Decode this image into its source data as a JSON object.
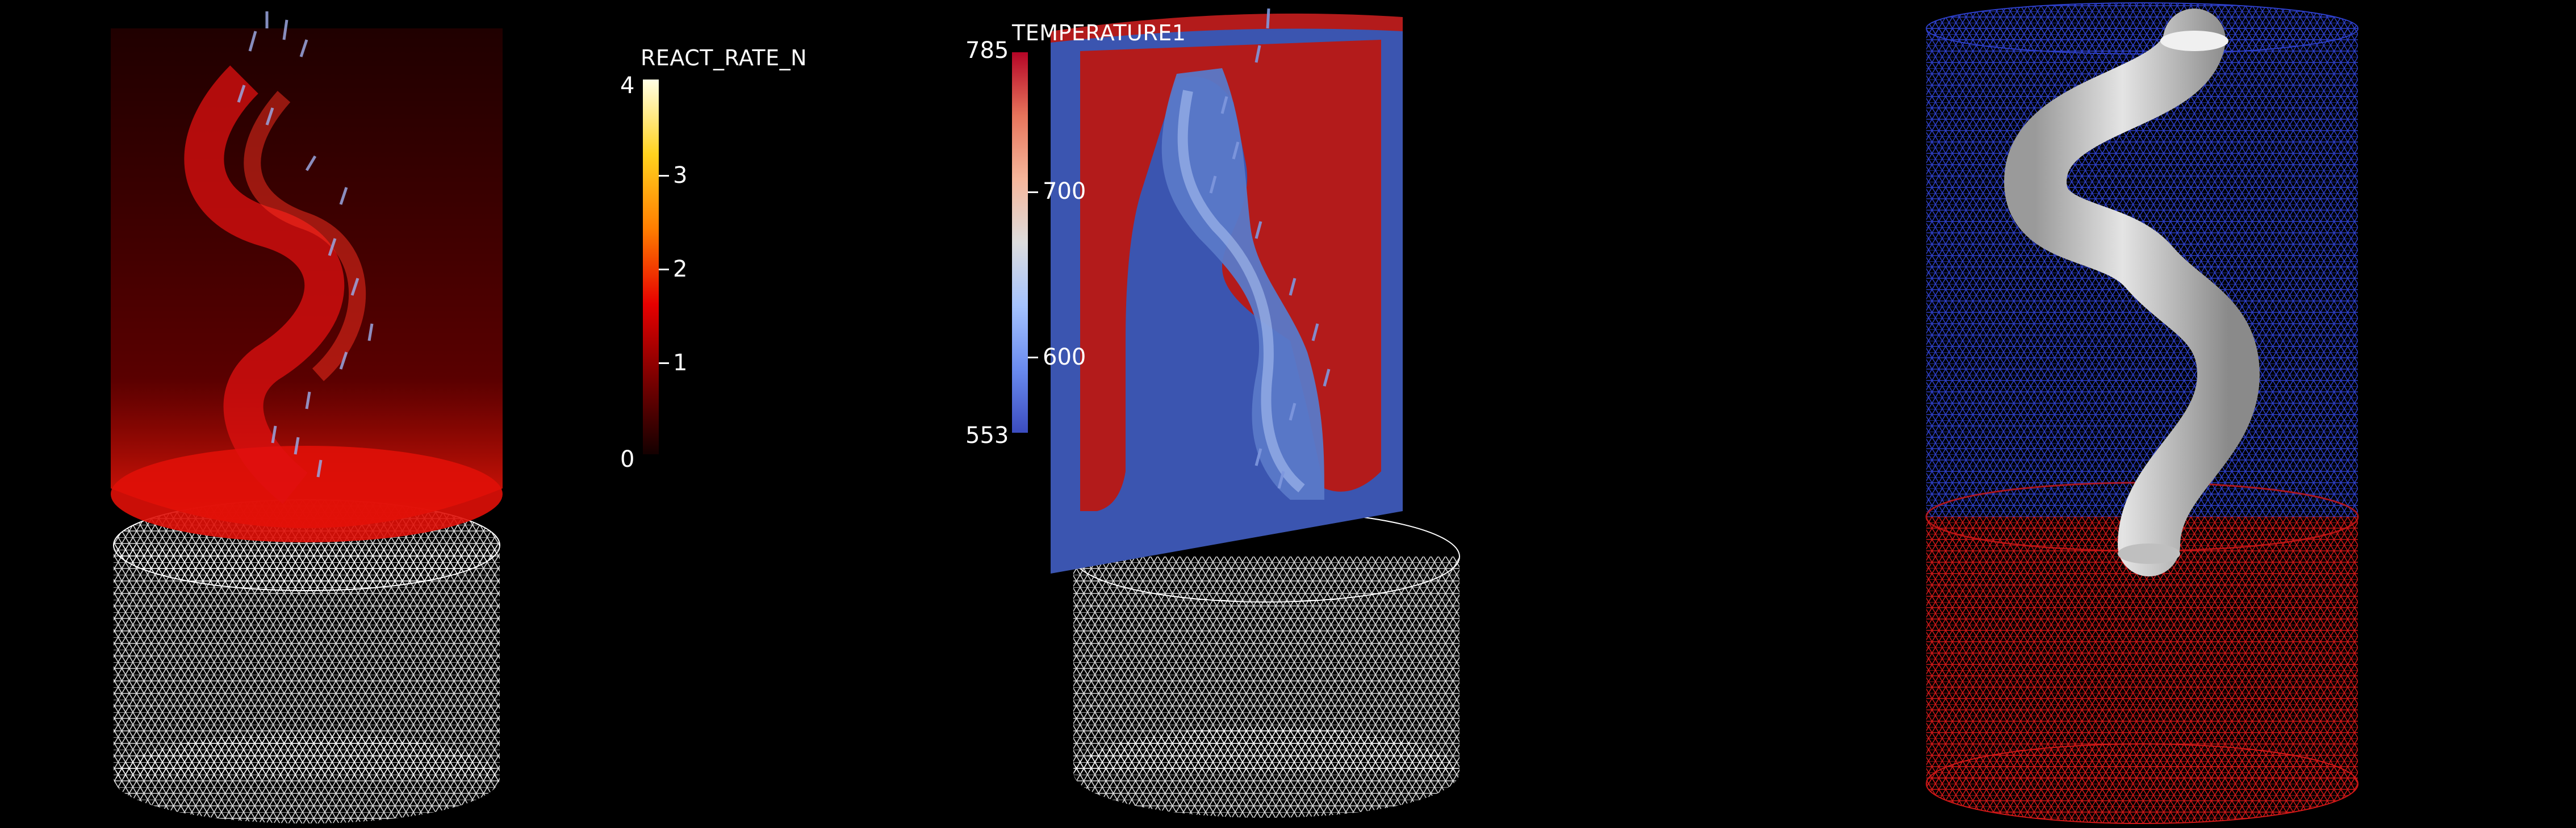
{
  "panels": [
    {
      "colorbar": {
        "title": "REACT_RATE_N",
        "ticks": [
          "4",
          "3",
          "2",
          "1",
          "0"
        ],
        "gradient": [
          "#ffffe6",
          "#ffd21e",
          "#ff7d00",
          "#e60000",
          "#7a0000",
          "#140000"
        ]
      }
    },
    {
      "colorbar": {
        "title": "TEMPERATURE1",
        "max": "785",
        "min": "553",
        "ticks": [
          "700",
          "600"
        ],
        "gradient": [
          "#b40426",
          "#e7745b",
          "#f6b69b",
          "#dddddd",
          "#a5c3fe",
          "#6a8bef",
          "#3b4cc0"
        ]
      }
    },
    {}
  ],
  "colors": {
    "background": "#000000",
    "mesh_white": "#ffffff",
    "mesh_blue": "#2d3fc8",
    "mesh_red": "#d01818",
    "flow_red": "#d01010",
    "temp_hot": "#b31b1b",
    "temp_cold": "#3b55b0",
    "tube_grey": "#c8c8c8"
  }
}
